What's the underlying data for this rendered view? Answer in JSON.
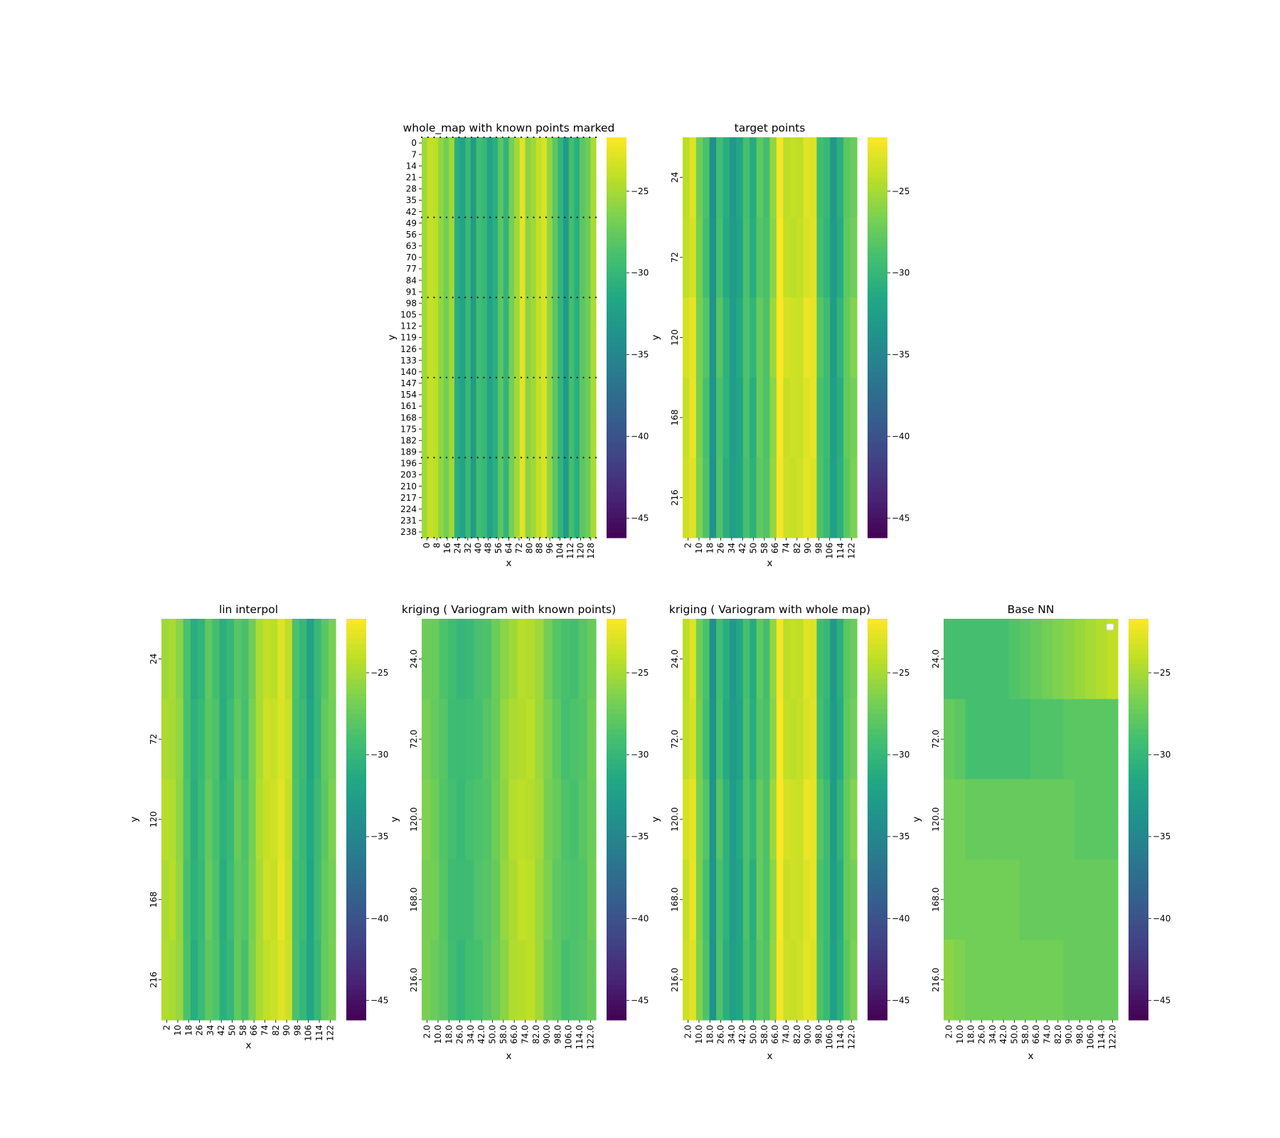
{
  "colorbar": {
    "colormap": "viridis",
    "vmin": -46.2,
    "vmax": -21.7,
    "ticks": [
      -25,
      -30,
      -35,
      -40,
      -45
    ],
    "tick_labels": [
      "−25",
      "−30",
      "−35",
      "−40",
      "−45"
    ]
  },
  "chart_data": [
    {
      "type": "heatmap",
      "title": "whole_map with known points marked",
      "xlabel": "x",
      "ylabel": "y",
      "x_tick_labels": [
        "0",
        "8",
        "16",
        "24",
        "32",
        "40",
        "48",
        "56",
        "64",
        "72",
        "80",
        "88",
        "96",
        "104",
        "112",
        "120",
        "128"
      ],
      "y_tick_labels": [
        "0",
        "7",
        "14",
        "21",
        "28",
        "35",
        "42",
        "49",
        "56",
        "63",
        "70",
        "77",
        "84",
        "91",
        "98",
        "105",
        "112",
        "119",
        "126",
        "133",
        "140",
        "147",
        "154",
        "161",
        "168",
        "175",
        "182",
        "189",
        "196",
        "203",
        "210",
        "217",
        "224",
        "231",
        "238"
      ],
      "x_range": [
        0,
        130
      ],
      "y_range": [
        0,
        240
      ],
      "row_bands": 1,
      "column_profile": [
        -25,
        -24,
        -24,
        -26,
        -27,
        -25,
        -31,
        -32,
        -30,
        -33,
        -29,
        -30,
        -32,
        -31,
        -28,
        -30,
        -27,
        -25,
        -23,
        -26,
        -25,
        -24,
        -23,
        -26,
        -28,
        -30,
        -33,
        -29,
        -31,
        -28,
        -27,
        -25
      ],
      "known_points": {
        "marker": "dotted rows",
        "rows_y": [
          0,
          48,
          96,
          144,
          192,
          240
        ],
        "x_values": [
          2,
          10,
          18,
          26,
          34,
          42,
          50,
          58,
          66,
          74,
          82,
          90,
          98,
          106,
          114,
          122
        ]
      },
      "colorbar_ticks": [
        -25,
        -30,
        -35,
        -40,
        -45
      ]
    },
    {
      "type": "heatmap",
      "title": "target points",
      "xlabel": "x",
      "ylabel": "y",
      "x_tick_labels": [
        "2",
        "10",
        "18",
        "26",
        "34",
        "42",
        "50",
        "58",
        "66",
        "74",
        "82",
        "90",
        "98",
        "106",
        "114",
        "122"
      ],
      "y_tick_labels": [
        "24",
        "72",
        "120",
        "168",
        "216"
      ],
      "row_bands": 5,
      "column_profile": [
        -24,
        -23,
        -27,
        -29,
        -34,
        -29,
        -31,
        -33,
        -32,
        -29,
        -31,
        -28,
        -29,
        -26,
        -22,
        -24,
        -24,
        -24,
        -23,
        -23,
        -29,
        -30,
        -33,
        -31,
        -28,
        -27
      ],
      "row_offsets": [
        0,
        0,
        0.5,
        0.3,
        0.3
      ],
      "colorbar_ticks": [
        -25,
        -30,
        -35,
        -40,
        -45
      ]
    },
    {
      "type": "heatmap",
      "title": "lin interpol",
      "xlabel": "x",
      "ylabel": "y",
      "x_tick_labels": [
        "2",
        "10",
        "18",
        "26",
        "34",
        "42",
        "50",
        "58",
        "66",
        "74",
        "82",
        "90",
        "98",
        "106",
        "114",
        "122"
      ],
      "y_tick_labels": [
        "24",
        "72",
        "120",
        "168",
        "216"
      ],
      "row_bands": 5,
      "column_profile": [
        -25,
        -25,
        -26,
        -29,
        -31,
        -30,
        -28,
        -29,
        -31,
        -30,
        -28,
        -29,
        -27,
        -25,
        -24,
        -24,
        -23,
        -24,
        -29,
        -30,
        -32,
        -30,
        -28,
        -27
      ],
      "row_offsets": [
        0,
        0.2,
        0.3,
        0.3,
        0.2
      ],
      "colorbar_ticks": [
        -25,
        -30,
        -35,
        -40,
        -45
      ]
    },
    {
      "type": "heatmap",
      "title": "kriging  ( Variogram with known points)",
      "xlabel": "x",
      "ylabel": "y",
      "x_tick_labels": [
        "2.0",
        "10.0",
        "18.0",
        "26.0",
        "34.0",
        "42.0",
        "50.0",
        "58.0",
        "66.0",
        "74.0",
        "82.0",
        "90.0",
        "98.0",
        "106.0",
        "114.0",
        "122.0"
      ],
      "y_tick_labels": [
        "24.0",
        "72.0",
        "120.0",
        "168.0",
        "216.0"
      ],
      "row_bands": 5,
      "column_profile": [
        -27,
        -27.5,
        -28.5,
        -29.5,
        -30,
        -29.5,
        -29,
        -28.5,
        -27.5,
        -26,
        -25,
        -24.5,
        -24.5,
        -25.5,
        -27,
        -28,
        -29,
        -29,
        -28.5,
        -27.5
      ],
      "row_offsets": [
        0,
        0.2,
        0.3,
        0.3,
        0.2
      ],
      "colorbar_ticks": [
        -25,
        -30,
        -35,
        -40,
        -45
      ]
    },
    {
      "type": "heatmap",
      "title": "kriging ( Variogram with whole map)",
      "xlabel": "x",
      "ylabel": "y",
      "x_tick_labels": [
        "2.0",
        "10.0",
        "18.0",
        "26.0",
        "34.0",
        "42.0",
        "50.0",
        "58.0",
        "66.0",
        "74.0",
        "82.0",
        "90.0",
        "98.0",
        "106.0",
        "114.0",
        "122.0"
      ],
      "y_tick_labels": [
        "24.0",
        "72.0",
        "120.0",
        "168.0",
        "216.0"
      ],
      "row_bands": 5,
      "column_profile": [
        -24,
        -23,
        -27,
        -29,
        -34,
        -29,
        -31,
        -33,
        -32,
        -29,
        -31,
        -28,
        -29,
        -26,
        -22,
        -24,
        -24,
        -24,
        -23,
        -23,
        -29,
        -30,
        -33,
        -31,
        -28,
        -27
      ],
      "row_offsets": [
        0,
        0,
        0.5,
        0.3,
        0.3
      ],
      "colorbar_ticks": [
        -25,
        -30,
        -35,
        -40,
        -45
      ]
    },
    {
      "type": "heatmap",
      "title": "Base NN",
      "xlabel": "x",
      "ylabel": "y",
      "x_tick_labels": [
        "2.0",
        "10.0",
        "18.0",
        "26.0",
        "34.0",
        "42.0",
        "50.0",
        "58.0",
        "66.0",
        "74.0",
        "82.0",
        "90.0",
        "98.0",
        "106.0",
        "114.0",
        "122.0"
      ],
      "y_tick_labels": [
        "24.0",
        "72.0",
        "120.0",
        "168.0",
        "216.0"
      ],
      "row_bands": 5,
      "band_profiles": [
        [
          -29,
          -29,
          -29,
          -29,
          -29,
          -29,
          -28.5,
          -28,
          -27.5,
          -27,
          -26.5,
          -26,
          -25.5,
          -25,
          -24.5,
          -24
        ],
        [
          -27.5,
          -28,
          -29,
          -29,
          -29,
          -29,
          -29,
          -29,
          -28.5,
          -28.5,
          -28.5,
          -28,
          -28,
          -28,
          -28,
          -28
        ],
        [
          -27,
          -27,
          -27.5,
          -27.5,
          -27.5,
          -27.5,
          -27.5,
          -27.5,
          -27.5,
          -27.5,
          -27.5,
          -27.5,
          -28,
          -28,
          -28,
          -28
        ],
        [
          -27,
          -27,
          -27,
          -27,
          -27,
          -27,
          -27,
          -27.5,
          -27.5,
          -27.5,
          -27.5,
          -27.5,
          -27.5,
          -27.5,
          -27.5,
          -27.5
        ],
        [
          -26,
          -26.5,
          -27,
          -27,
          -27,
          -27,
          -27,
          -27,
          -27,
          -27,
          -27,
          -27.5,
          -27.5,
          -27.5,
          -27.5,
          -27.5
        ]
      ],
      "legend": {
        "placement": "upper right",
        "entries": []
      },
      "colorbar_ticks": [
        -25,
        -30,
        -35,
        -40,
        -45
      ]
    }
  ]
}
